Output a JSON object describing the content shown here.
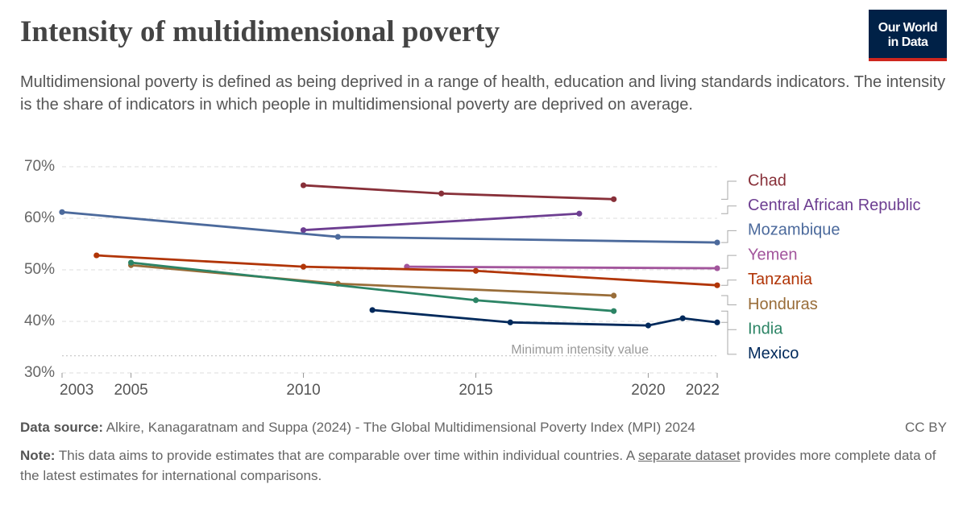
{
  "title": "Intensity of multidimensional poverty",
  "subtitle": "Multidimensional poverty is defined as being deprived in a range of health, education and living standards indicators. The intensity is the share of indicators in which people in multidimensional poverty are deprived on average.",
  "logo": [
    "Our World",
    "in Data"
  ],
  "chart_data": {
    "type": "line",
    "xlim": [
      2003,
      2022
    ],
    "xticks": [
      2003,
      2005,
      2010,
      2015,
      2020,
      2022
    ],
    "ylim": [
      30,
      70
    ],
    "yticks": [
      {
        "value": 30,
        "label": "30%"
      },
      {
        "value": 40,
        "label": "40%"
      },
      {
        "value": 50,
        "label": "50%"
      },
      {
        "value": 60,
        "label": "60%"
      },
      {
        "value": 70,
        "label": "70%"
      }
    ],
    "grid": true,
    "reference_line": {
      "value": 33.33,
      "label": "Minimum intensity value"
    },
    "series": [
      {
        "name": "Chad",
        "color": "#883039",
        "x": [
          2010,
          2014,
          2019
        ],
        "values": [
          66.4,
          64.8,
          63.7
        ]
      },
      {
        "name": "Central African Republic",
        "color": "#6d3e91",
        "x": [
          2010,
          2018
        ],
        "values": [
          57.7,
          60.9
        ]
      },
      {
        "name": "Mozambique",
        "color": "#4c6a9c",
        "x": [
          2003,
          2011,
          2022
        ],
        "values": [
          61.2,
          56.4,
          55.3
        ]
      },
      {
        "name": "Yemen",
        "color": "#a2559c",
        "x": [
          2013,
          2022
        ],
        "values": [
          50.6,
          50.3
        ]
      },
      {
        "name": "Tanzania",
        "color": "#b13507",
        "x": [
          2004,
          2010,
          2015,
          2022
        ],
        "values": [
          52.8,
          50.6,
          49.8,
          47.0
        ]
      },
      {
        "name": "Honduras",
        "color": "#996d39",
        "x": [
          2005,
          2011,
          2019
        ],
        "values": [
          50.9,
          47.3,
          45.0
        ]
      },
      {
        "name": "India",
        "color": "#2c8465",
        "x": [
          2005,
          2015,
          2019
        ],
        "values": [
          51.4,
          44.1,
          42.0
        ]
      },
      {
        "name": "Mexico",
        "color": "#00295b",
        "x": [
          2012,
          2016,
          2020,
          2021,
          2022
        ],
        "values": [
          42.2,
          39.8,
          39.2,
          40.6,
          39.8
        ]
      }
    ]
  },
  "footer": {
    "source_label": "Data source:",
    "source": "Alkire, Kanagaratnam and Suppa (2024) - The Global Multidimensional Poverty Index (MPI) 2024",
    "license": "CC BY",
    "note_label": "Note:",
    "note_text_1": "This data aims to provide estimates that are comparable over time within individual countries. A",
    "note_link": "separate dataset",
    "note_text_2": "provides more complete data of the latest estimates for international comparisons."
  }
}
